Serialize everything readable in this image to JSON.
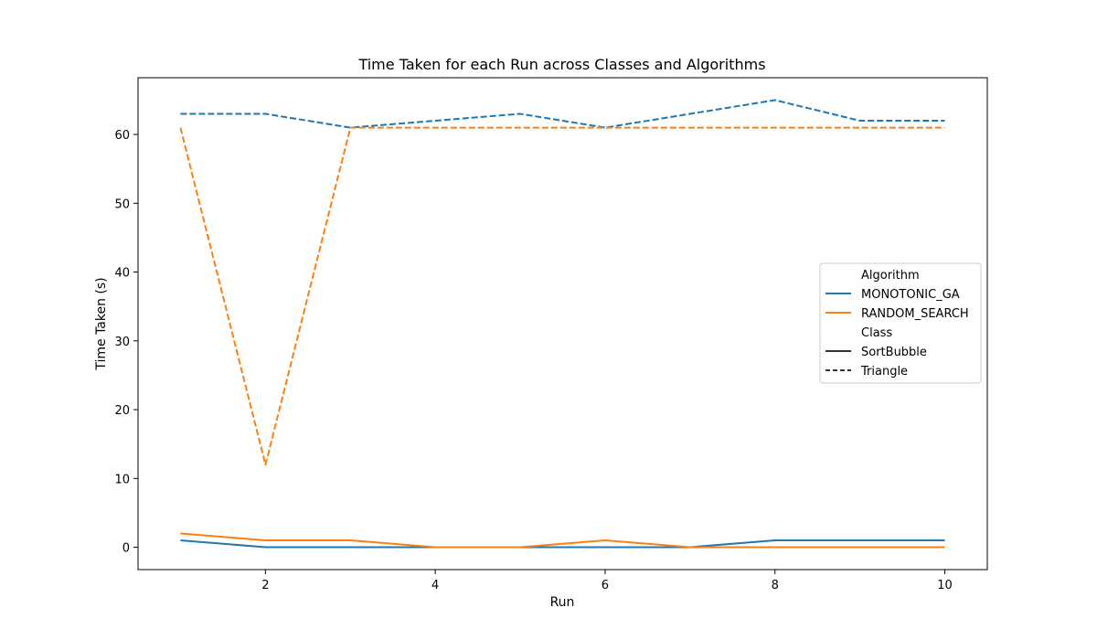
{
  "chart_data": {
    "type": "line",
    "title": "Time Taken for each Run across Classes and Algorithms",
    "xlabel": "Run",
    "ylabel": "Time Taken (s)",
    "xlim": [
      0.5,
      10.5
    ],
    "ylim": [
      -3.25,
      68.25
    ],
    "x_ticks": [
      2,
      4,
      6,
      8,
      10
    ],
    "y_ticks": [
      0,
      10,
      20,
      30,
      40,
      50,
      60
    ],
    "x": [
      1,
      2,
      3,
      4,
      5,
      6,
      7,
      8,
      9,
      10
    ],
    "grid": false,
    "legend": {
      "placement": "center-right",
      "hue_title": "Algorithm",
      "style_title": "Class",
      "algorithms": [
        {
          "name": "MONOTONIC_GA",
          "color": "#1f77b4"
        },
        {
          "name": "RANDOM_SEARCH",
          "color": "#ff7f0e"
        }
      ],
      "classes": [
        {
          "name": "SortBubble",
          "dash": "solid"
        },
        {
          "name": "Triangle",
          "dash": "dashed"
        }
      ]
    },
    "series": [
      {
        "name": "MONOTONIC_GA / SortBubble",
        "algorithm": "MONOTONIC_GA",
        "class": "SortBubble",
        "color": "#1f77b4",
        "dashed": false,
        "values": [
          1,
          0,
          0,
          0,
          0,
          0,
          0,
          1,
          1,
          1
        ]
      },
      {
        "name": "RANDOM_SEARCH / SortBubble",
        "algorithm": "RANDOM_SEARCH",
        "class": "SortBubble",
        "color": "#ff7f0e",
        "dashed": false,
        "values": [
          2,
          1,
          1,
          0,
          0,
          1,
          0,
          0,
          0,
          0
        ]
      },
      {
        "name": "MONOTONIC_GA / Triangle",
        "algorithm": "MONOTONIC_GA",
        "class": "Triangle",
        "color": "#1f77b4",
        "dashed": true,
        "values": [
          63,
          63,
          61,
          62,
          63,
          61,
          63,
          65,
          62,
          62
        ]
      },
      {
        "name": "RANDOM_SEARCH / Triangle",
        "algorithm": "RANDOM_SEARCH",
        "class": "Triangle",
        "color": "#ff7f0e",
        "dashed": true,
        "values": [
          61,
          12,
          61,
          61,
          61,
          61,
          61,
          61,
          61,
          61
        ]
      }
    ]
  }
}
